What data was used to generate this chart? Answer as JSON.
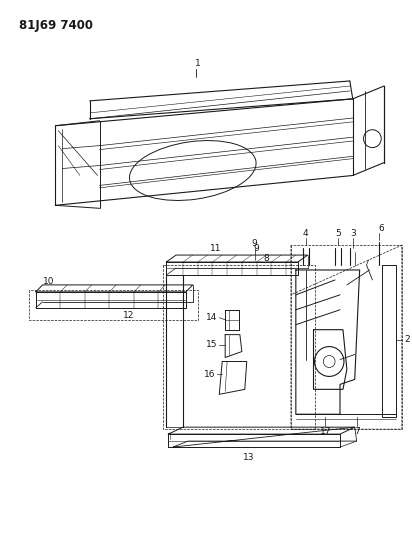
{
  "title_code": "81J69 7400",
  "background_color": "#ffffff",
  "line_color": "#1a1a1a",
  "fig_width": 4.12,
  "fig_height": 5.33,
  "dpi": 100
}
